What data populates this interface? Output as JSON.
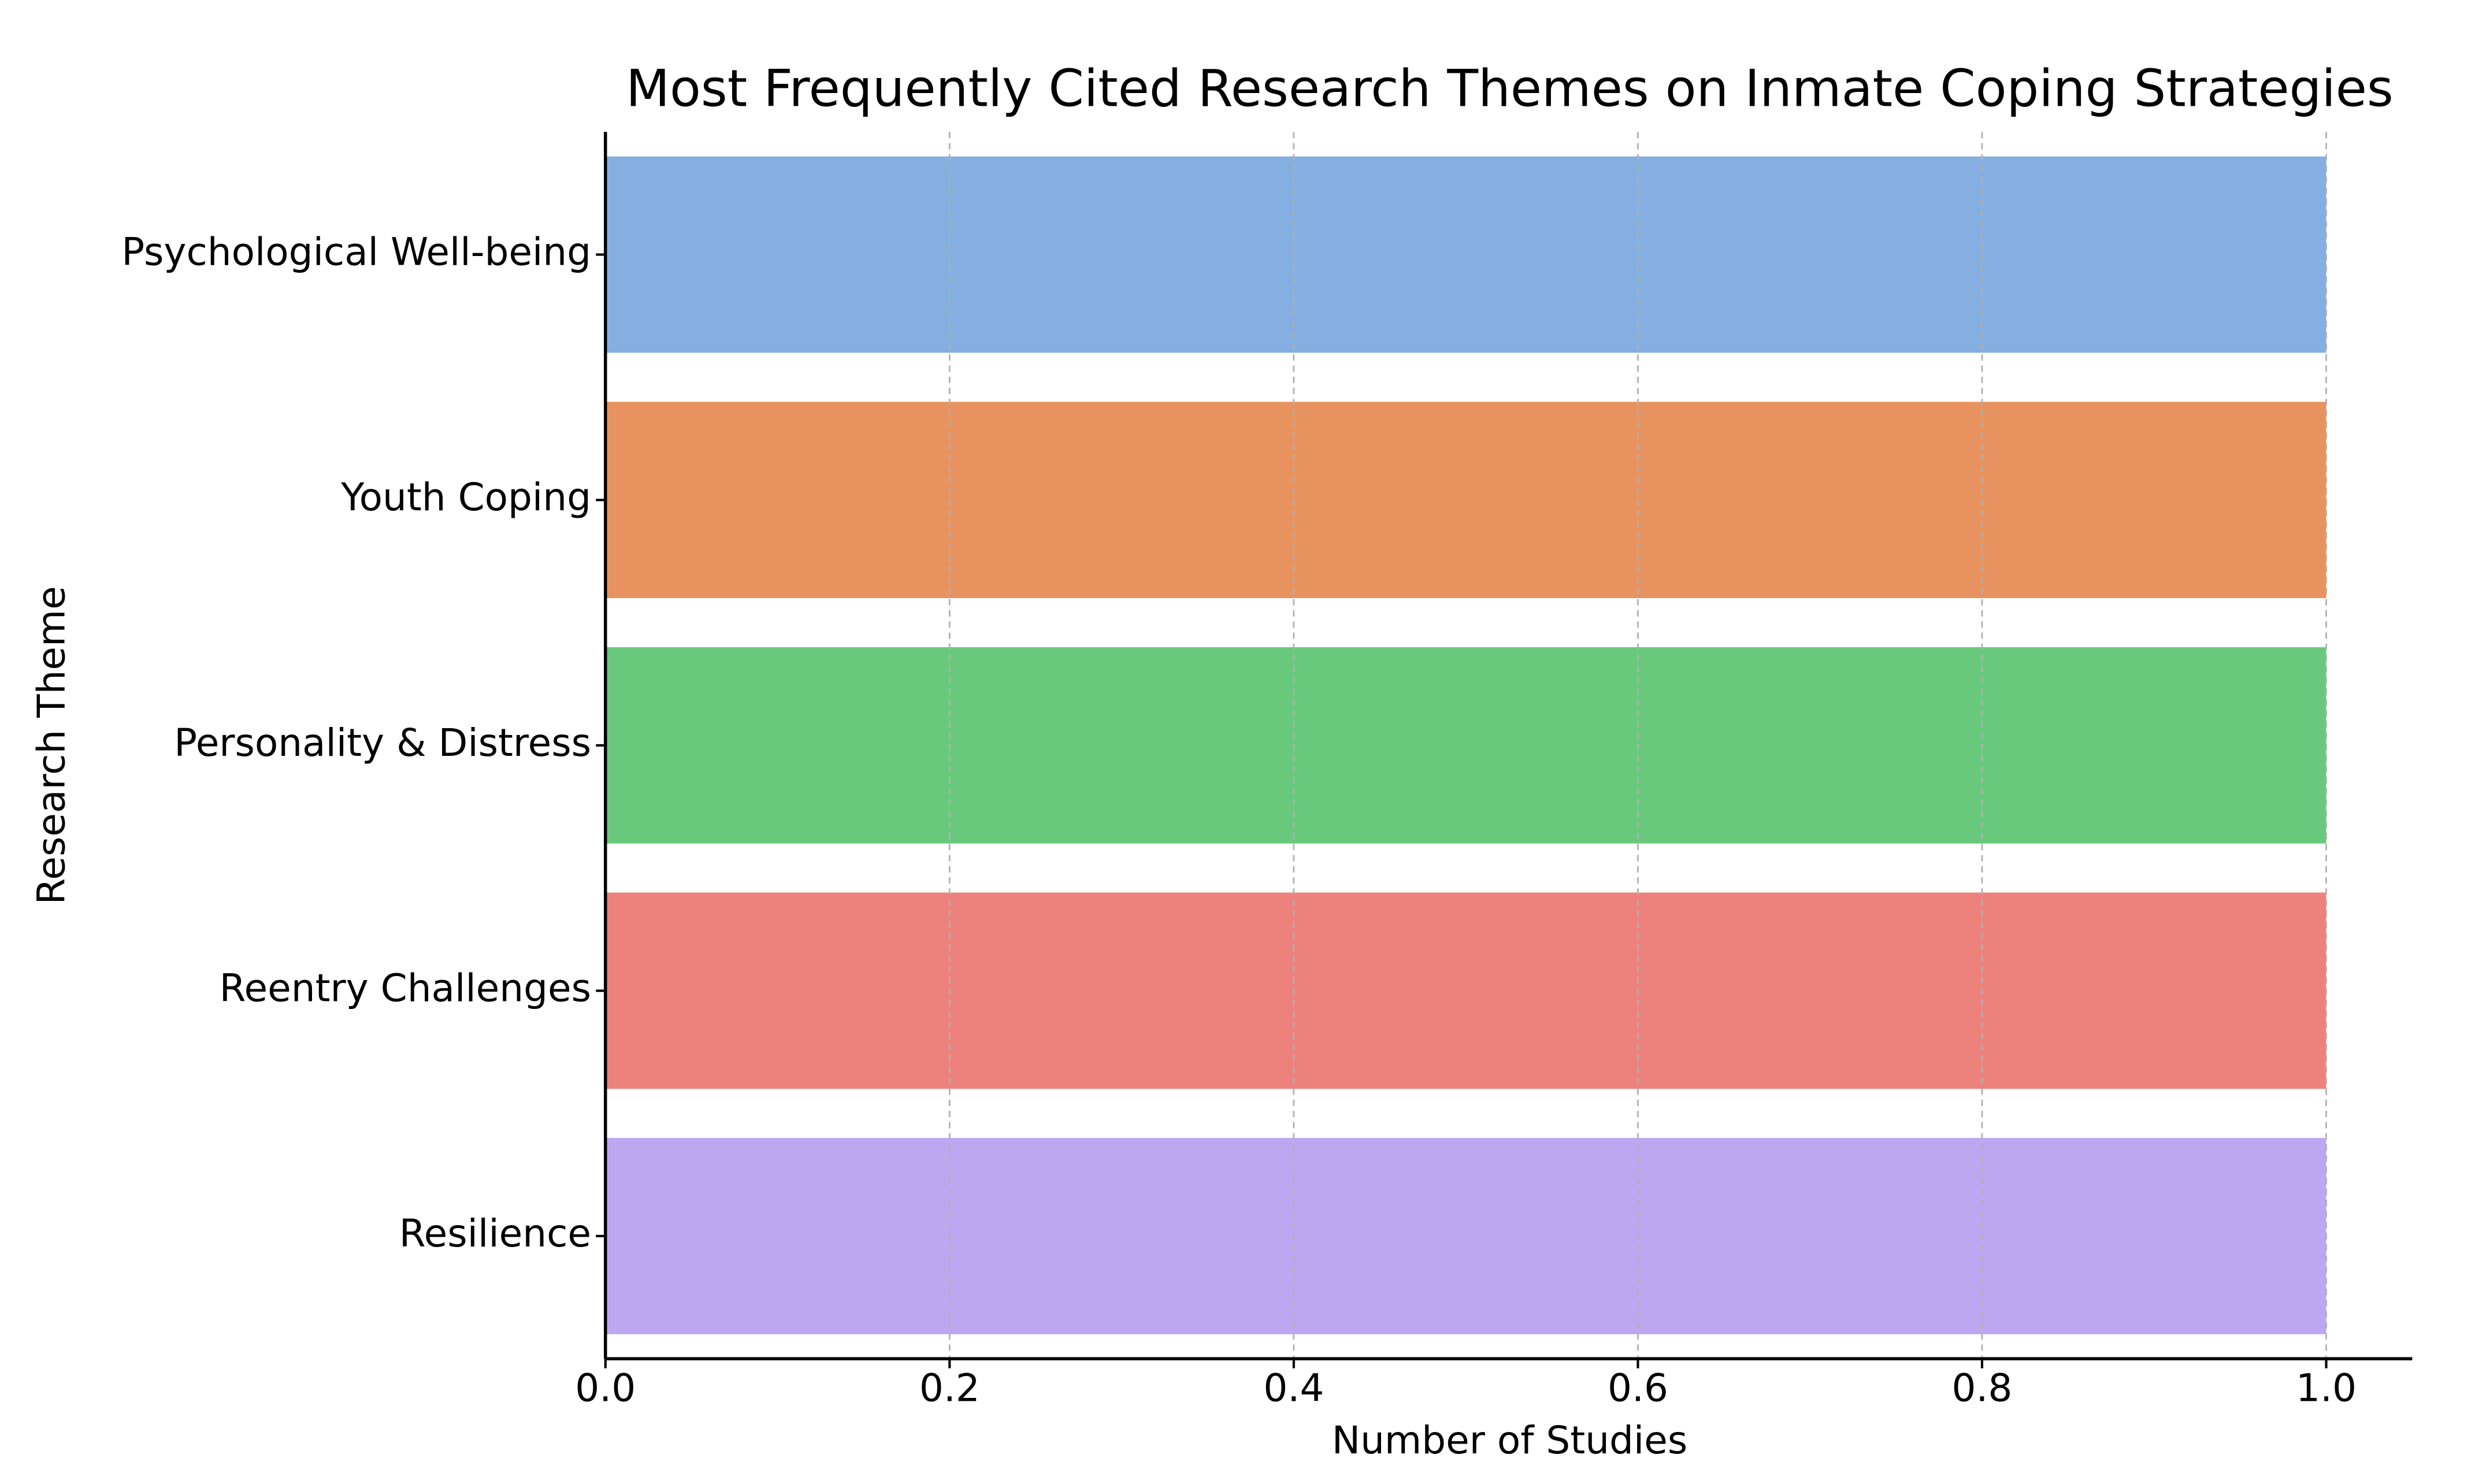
{
  "chart_data": {
    "type": "barh",
    "title": "Most Frequently Cited Research Themes on Inmate Coping Strategies",
    "xlabel": "Number of Studies",
    "ylabel": "Research Theme",
    "categories": [
      "Psychological Well-being",
      "Youth Coping",
      "Personality & Distress",
      "Reentry Challenges",
      "Resilience"
    ],
    "values": [
      1,
      1,
      1,
      1,
      1
    ],
    "colors": [
      "#84afe0",
      "#e8935f",
      "#68c97c",
      "#ed827d",
      "#bea7f1"
    ],
    "xlim": [
      0,
      1.05
    ],
    "xticks": [
      {
        "value": 0,
        "label": "0.0"
      },
      0.2,
      0.4,
      0.6,
      0.8,
      {
        "value": 1,
        "label": "1.0"
      }
    ],
    "grid": true
  }
}
